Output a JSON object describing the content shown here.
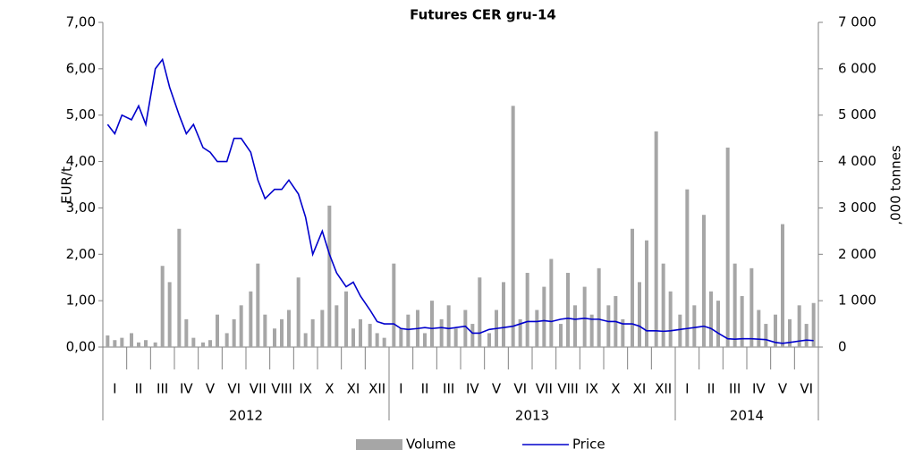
{
  "chart_data": {
    "type": "bar-line",
    "title": "Futures CER gru-14",
    "y_label": "EUR/t",
    "y2_label": ",000 tonnes",
    "months": [
      "I",
      "II",
      "III",
      "IV",
      "V",
      "VI",
      "VII",
      "VIII",
      "IX",
      "X",
      "XI",
      "XII",
      "I",
      "II",
      "III",
      "IV",
      "V",
      "VI",
      "VII",
      "VIII",
      "IX",
      "X",
      "XI",
      "XII",
      "I",
      "II",
      "III",
      "IV",
      "V",
      "VI"
    ],
    "years": [
      "2012",
      "2013",
      "2014"
    ],
    "xlim": [
      0,
      30
    ],
    "x": [
      0.2,
      0.5,
      0.8,
      1.2,
      1.5,
      1.8,
      2.2,
      2.5,
      2.8,
      3.2,
      3.5,
      3.8,
      4.2,
      4.5,
      4.8,
      5.2,
      5.5,
      5.8,
      6.2,
      6.5,
      6.8,
      7.2,
      7.5,
      7.8,
      8.2,
      8.5,
      8.8,
      9.2,
      9.5,
      9.8,
      10.2,
      10.5,
      10.8,
      11.2,
      11.5,
      11.8,
      12.2,
      12.5,
      12.8,
      13.2,
      13.5,
      13.8,
      14.2,
      14.5,
      14.8,
      15.2,
      15.5,
      15.8,
      16.2,
      16.5,
      16.8,
      17.2,
      17.5,
      17.8,
      18.2,
      18.5,
      18.8,
      19.2,
      19.5,
      19.8,
      20.2,
      20.5,
      20.8,
      21.2,
      21.5,
      21.8,
      22.2,
      22.5,
      22.8,
      23.2,
      23.5,
      23.8,
      24.2,
      24.5,
      24.8,
      25.2,
      25.5,
      25.8,
      26.2,
      26.5,
      26.8,
      27.2,
      27.5,
      27.8,
      28.2,
      28.5,
      28.8,
      29.2,
      29.5,
      29.8
    ],
    "ylim": [
      0,
      7
    ],
    "yticks": [
      {
        "value": 0,
        "label": "0,00"
      },
      {
        "value": 1,
        "label": "1,00"
      },
      {
        "value": 2,
        "label": "2,00"
      },
      {
        "value": 3,
        "label": "3,00"
      },
      {
        "value": 4,
        "label": "4,00"
      },
      {
        "value": 5,
        "label": "5,00"
      },
      {
        "value": 6,
        "label": "6,00"
      },
      {
        "value": 7,
        "label": "7,00"
      }
    ],
    "y2lim": [
      0,
      7000
    ],
    "y2ticks": [
      0,
      {
        "value": 1000,
        "label": "1 000"
      },
      {
        "value": 2000,
        "label": "2 000"
      },
      {
        "value": 3000,
        "label": "3 000"
      },
      {
        "value": 4000,
        "label": "4 000"
      },
      {
        "value": 5000,
        "label": "5 000"
      },
      {
        "value": 6000,
        "label": "6 000"
      },
      {
        "value": 7000,
        "label": "7 000"
      }
    ],
    "series": [
      {
        "name": "Volume",
        "kind": "bar",
        "axis": "y2",
        "color": "#a6a6a6",
        "values": [
          250,
          150,
          200,
          300,
          100,
          150,
          100,
          1750,
          1400,
          2550,
          600,
          200,
          100,
          150,
          700,
          300,
          600,
          900,
          1200,
          1800,
          700,
          400,
          600,
          800,
          1500,
          300,
          600,
          800,
          3050,
          900,
          1200,
          400,
          600,
          500,
          300,
          200,
          1800,
          400,
          700,
          800,
          300,
          1000,
          600,
          900,
          400,
          800,
          500,
          1500,
          300,
          800,
          1400,
          5200,
          600,
          1600,
          800,
          1300,
          1900,
          500,
          1600,
          900,
          1300,
          700,
          1700,
          900,
          1100,
          600,
          2550,
          1400,
          2300,
          4650,
          1800,
          1200,
          700,
          3400,
          900,
          2850,
          1200,
          1000,
          4300,
          1800,
          1100,
          1700,
          800,
          500,
          700,
          2650,
          600,
          900,
          500,
          950
        ]
      },
      {
        "name": "Price",
        "kind": "line",
        "color": "#0000cc",
        "values": [
          4.8,
          4.6,
          5.0,
          4.9,
          5.2,
          4.8,
          6.0,
          6.2,
          5.6,
          5.0,
          4.6,
          4.8,
          4.3,
          4.2,
          4.0,
          4.0,
          4.5,
          4.5,
          4.2,
          3.6,
          3.2,
          3.4,
          3.4,
          3.6,
          3.3,
          2.8,
          2.0,
          2.5,
          2.0,
          1.6,
          1.3,
          1.4,
          1.1,
          0.8,
          0.55,
          0.5,
          0.5,
          0.4,
          0.38,
          0.4,
          0.42,
          0.4,
          0.42,
          0.4,
          0.42,
          0.45,
          0.3,
          0.3,
          0.38,
          0.4,
          0.42,
          0.45,
          0.5,
          0.55,
          0.55,
          0.57,
          0.55,
          0.6,
          0.62,
          0.6,
          0.62,
          0.6,
          0.6,
          0.55,
          0.55,
          0.5,
          0.5,
          0.45,
          0.35,
          0.35,
          0.34,
          0.35,
          0.38,
          0.4,
          0.42,
          0.45,
          0.4,
          0.3,
          0.18,
          0.17,
          0.18,
          0.18,
          0.17,
          0.16,
          0.1,
          0.08,
          0.1,
          0.13,
          0.15,
          0.14
        ]
      }
    ]
  }
}
